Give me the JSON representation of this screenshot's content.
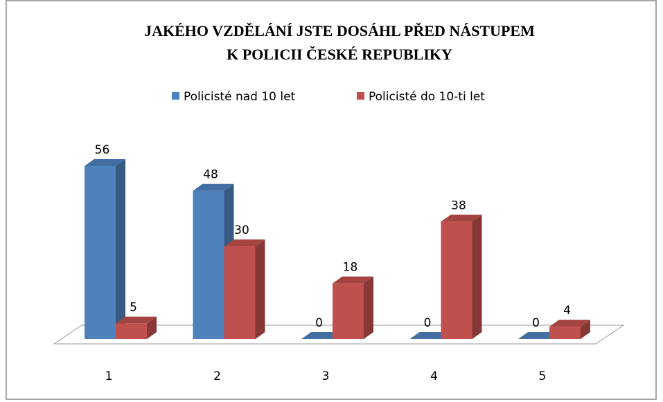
{
  "chart_data": {
    "type": "bar3d",
    "title": [
      "JAKÉHO VZDĚLÁNÍ JSTE DOSÁHL PŘED NÁSTUPEM",
      "K POLICII ČESKÉ REPUBLIKY"
    ],
    "categories": [
      "1",
      "2",
      "3",
      "4",
      "5"
    ],
    "series": [
      {
        "name": "Policisté nad 10 let",
        "color": "#4f81bd",
        "values": [
          56,
          48,
          0,
          0,
          0
        ]
      },
      {
        "name": "Policisté do 10-ti let",
        "color": "#c0504d",
        "values": [
          5,
          30,
          18,
          38,
          4
        ]
      }
    ],
    "legend": "top"
  }
}
